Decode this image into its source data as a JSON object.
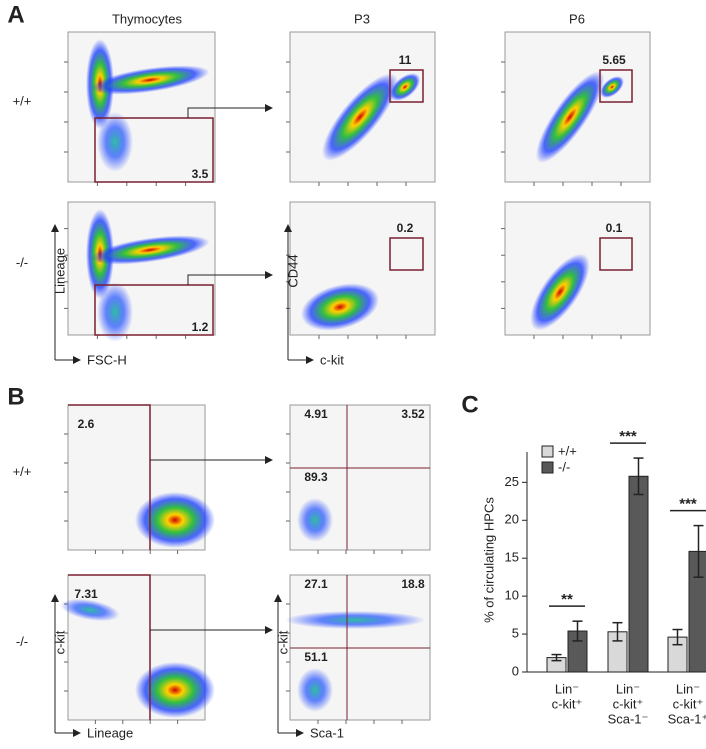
{
  "panel_a": {
    "label": "A",
    "columns": [
      "Thymocytes",
      "P3",
      "P6"
    ],
    "rows": [
      "+/+",
      "-/-"
    ],
    "gates": [
      [
        3.5,
        11,
        5.65
      ],
      [
        1.2,
        0.2,
        0.1
      ]
    ],
    "axes": {
      "y1": "Lineage",
      "x1": "FSC-H",
      "y2": "CD44",
      "x2": "c-kit"
    }
  },
  "panel_b": {
    "label": "B",
    "rows": [
      "+/+",
      "-/-"
    ],
    "gates": [
      [
        2.6,
        4.91,
        3.52,
        89.3
      ],
      [
        7.31,
        27.1,
        18.8,
        51.1
      ]
    ],
    "axes": {
      "y1": "c-kit",
      "x1": "Lineage",
      "y2": "c-kit",
      "x2": "Sca-1"
    }
  },
  "chart_data": {
    "type": "bar",
    "label": "C",
    "ylabel": "% of circulating HPCs",
    "categories": [
      [
        "Lin⁻",
        "c-kit⁺"
      ],
      [
        "Lin⁻",
        "c-kit⁺",
        "Sca-1⁻"
      ],
      [
        "Lin⁻",
        "c-kit⁺",
        "Sca-1⁺"
      ]
    ],
    "series": [
      {
        "name": "+/+",
        "color": "#d9d9d9",
        "values": [
          1.9,
          5.3,
          4.6
        ],
        "errors": [
          0.4,
          1.2,
          1.0
        ]
      },
      {
        "name": "-/-",
        "color": "#595959",
        "values": [
          5.4,
          25.8,
          15.9
        ],
        "errors": [
          1.3,
          2.4,
          3.4
        ]
      }
    ],
    "significance": [
      "**",
      "***",
      "***"
    ],
    "ylim": [
      0,
      29
    ],
    "yticks": [
      0,
      5,
      10,
      15,
      20,
      25
    ],
    "legend": "upper-left"
  }
}
